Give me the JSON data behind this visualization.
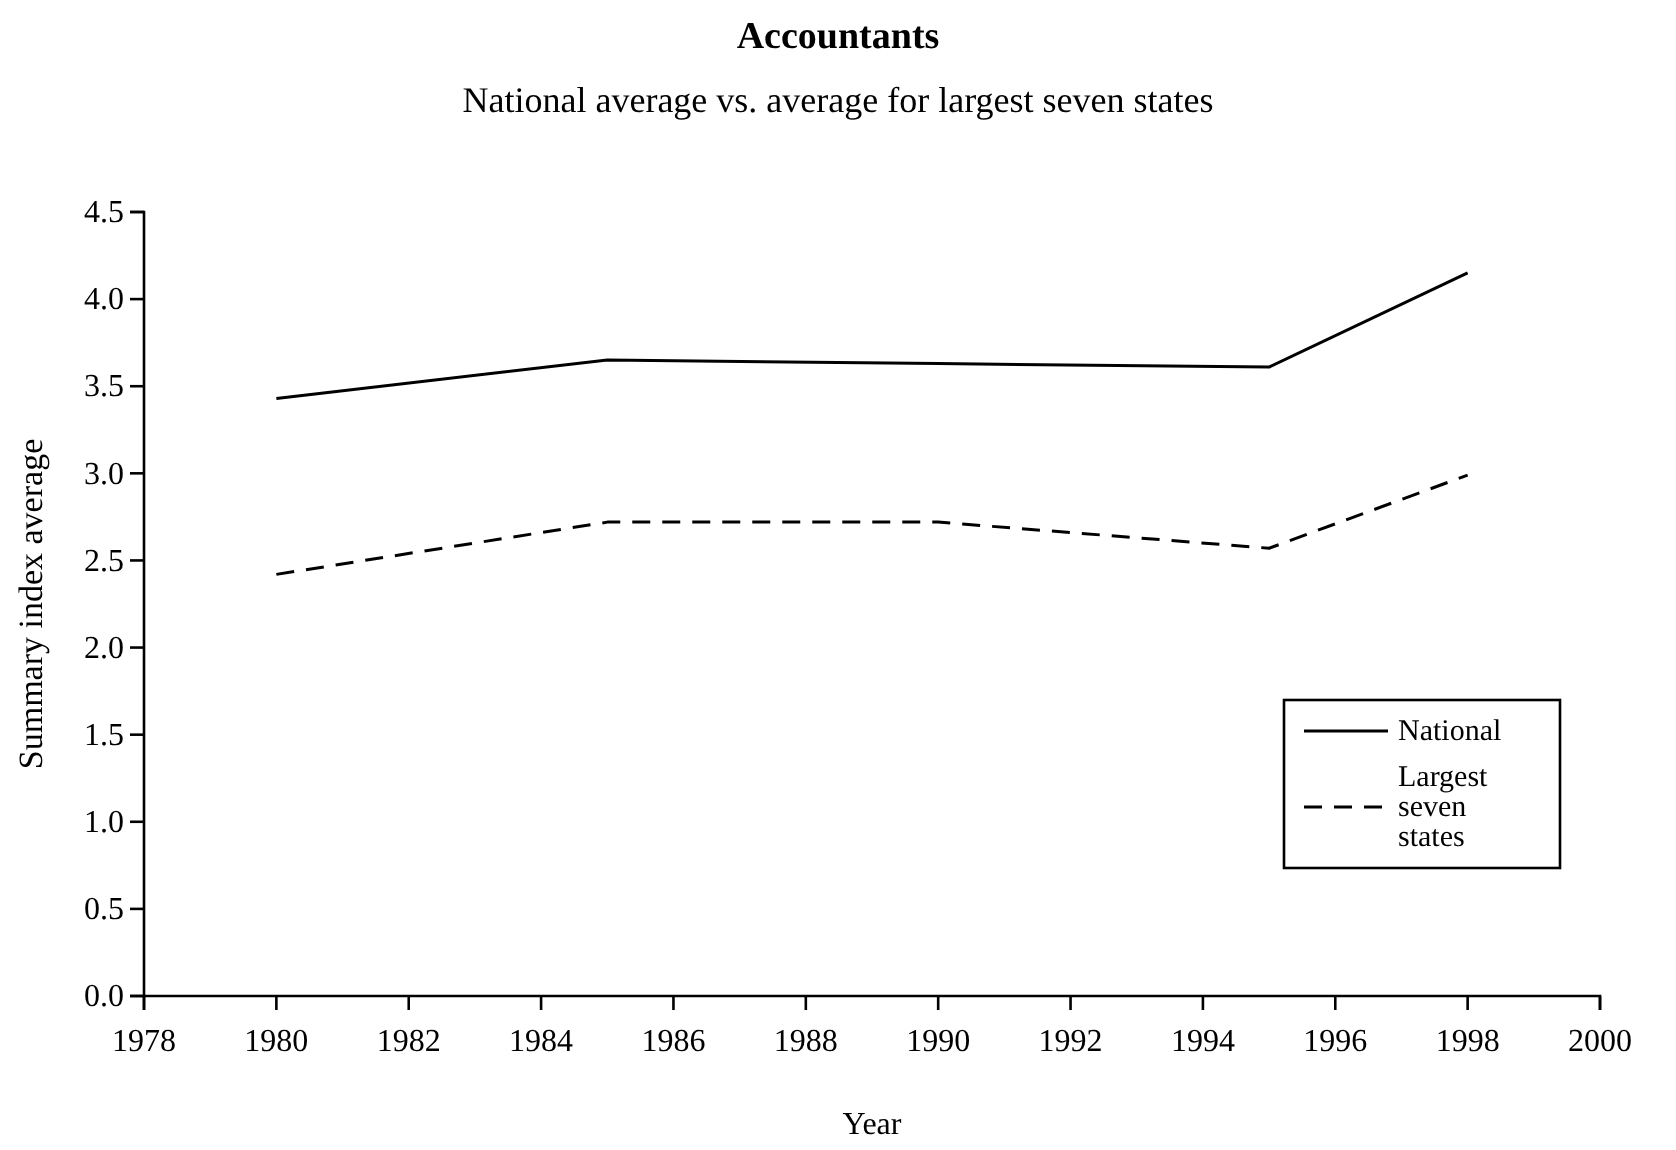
{
  "chart_data": {
    "type": "line",
    "title": "Accountants",
    "subtitle": "National average vs. average for largest seven states",
    "xlabel": "Year",
    "ylabel": "Summary index average",
    "x": [
      1980,
      1985,
      1990,
      1995,
      1998
    ],
    "series": [
      {
        "name": "National",
        "color": "#000000",
        "line_style": "solid",
        "values": [
          3.43,
          3.65,
          3.63,
          3.61,
          4.15
        ]
      },
      {
        "name": "Largest seven states",
        "color": "#000000",
        "line_style": "dashed",
        "values": [
          2.42,
          2.72,
          2.72,
          2.57,
          2.99
        ]
      }
    ],
    "xlim": [
      1978,
      2000
    ],
    "xticks": [
      1978,
      1980,
      1982,
      1984,
      1986,
      1988,
      1990,
      1992,
      1994,
      1996,
      1998,
      2000
    ],
    "ylim": [
      0,
      4.5
    ],
    "yticks": [
      {
        "value": 0,
        "label": "0.0"
      },
      {
        "value": 0.5,
        "label": "0.5"
      },
      {
        "value": 1,
        "label": "1.0"
      },
      {
        "value": 1.5,
        "label": "1.5"
      },
      {
        "value": 2,
        "label": "2.0"
      },
      {
        "value": 2.5,
        "label": "2.5"
      },
      {
        "value": 3,
        "label": "3.0"
      },
      {
        "value": 3.5,
        "label": "3.5"
      },
      {
        "value": 4,
        "label": "4.0"
      },
      {
        "value": 4.5,
        "label": "4.5"
      }
    ],
    "grid": false,
    "legend": "bottom right",
    "marker": "none"
  }
}
